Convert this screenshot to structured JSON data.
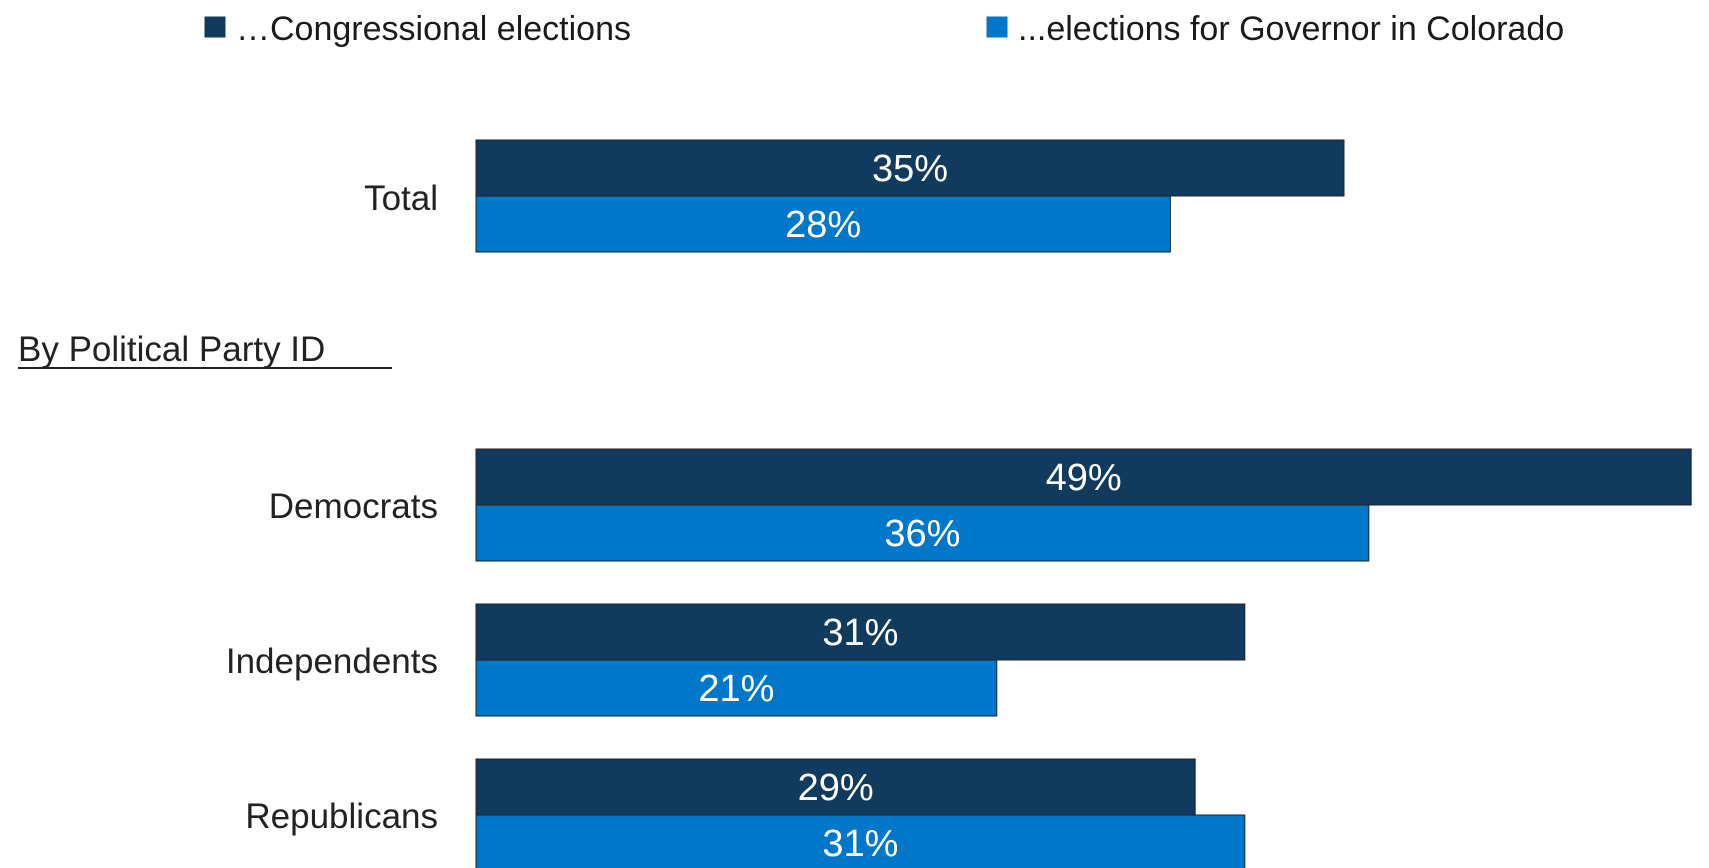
{
  "chart_data": {
    "type": "bar",
    "orientation": "horizontal",
    "categories": [
      "Total",
      "Democrats",
      "Independents",
      "Republicans"
    ],
    "section_heading": "By Political Party ID",
    "series": [
      {
        "name": "…Congressional elections",
        "color": "#103a5e",
        "values": [
          35,
          49,
          31,
          29
        ],
        "labels": [
          "35%",
          "49%",
          "31%",
          "29%"
        ]
      },
      {
        "name": "...elections for Governor in Colorado",
        "color": "#0077c8",
        "values": [
          28,
          36,
          21,
          31
        ],
        "labels": [
          "28%",
          "36%",
          "21%",
          "31%"
        ]
      }
    ],
    "legend_position": "top",
    "grid": false,
    "unit": "%"
  }
}
